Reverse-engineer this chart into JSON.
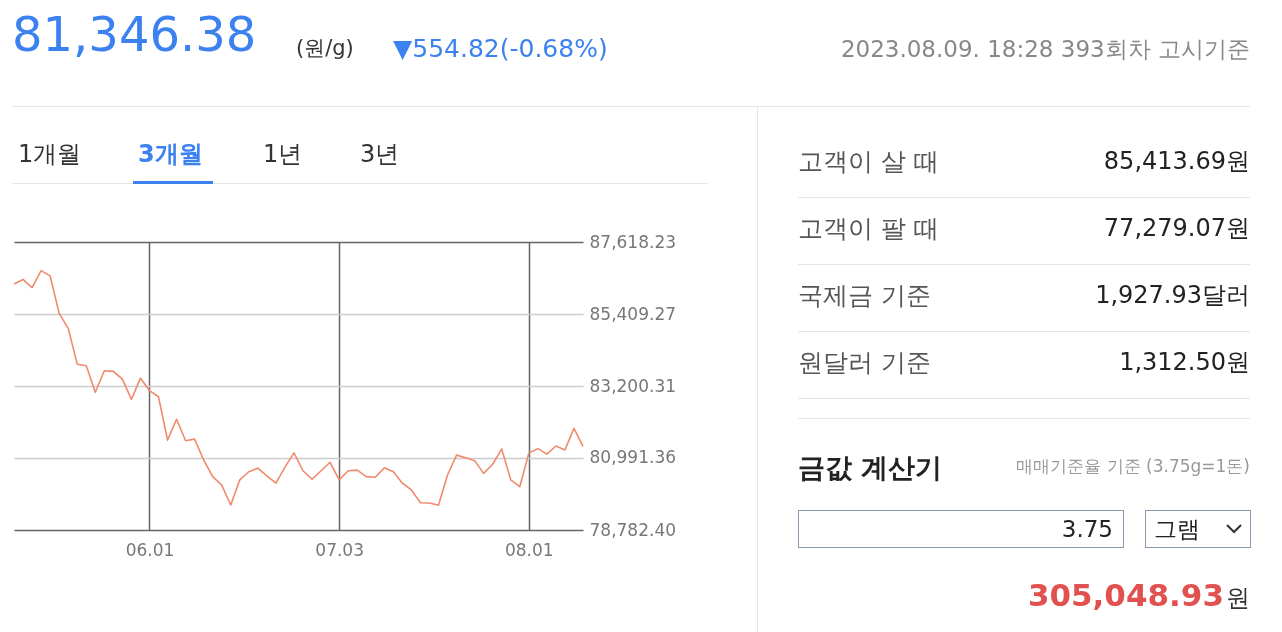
{
  "chart_data": [
    {
      "type": "line",
      "title": "81,346.38",
      "subtitle": "▼554.82(-0.68%)",
      "annotations": [
        "(원/g)",
        "2023.08.09. 18:28 393회차 고시기준",
        "1개월",
        "3개월",
        "1년",
        "3년"
      ],
      "categories": [
        null,
        null,
        null,
        null,
        null,
        null,
        null,
        null,
        null,
        null,
        null,
        null,
        null,
        null,
        null,
        "06.01",
        null,
        null,
        null,
        null,
        null,
        null,
        null,
        null,
        null,
        null,
        null,
        null,
        null,
        null,
        null,
        null,
        null,
        null,
        null,
        null,
        "07.03",
        null,
        null,
        null,
        null,
        null,
        null,
        null,
        null,
        null,
        null,
        null,
        null,
        null,
        null,
        null,
        null,
        null,
        null,
        null,
        null,
        "08.01",
        null,
        null,
        null,
        null,
        null,
        null
      ],
      "series": [
        {
          "color": "#f08a6c",
          "values": [
            86330,
            86470,
            86220,
            86740,
            86580,
            85430,
            84970,
            83870,
            83820,
            83010,
            83670,
            83650,
            83410,
            82790,
            83440,
            83060,
            82870,
            81540,
            82180,
            81520,
            81570,
            80930,
            80420,
            80160,
            79550,
            80320,
            80570,
            80680,
            80440,
            80220,
            80710,
            81150,
            80600,
            80340,
            80600,
            80860,
            80320,
            80600,
            80620,
            80420,
            80400,
            80690,
            80570,
            80220,
            80010,
            79620,
            79610,
            79540,
            80470,
            81080,
            81000,
            80910,
            80520,
            80800,
            81270,
            80320,
            80110,
            81140,
            81280,
            81110,
            81360,
            81240,
            81900,
            81350
          ]
        }
      ],
      "ylim": [
        78782.4,
        87618.23
      ],
      "yticks": [
        {
          "value": 78782.4,
          "label": "78,782.40"
        },
        {
          "value": 80991.36,
          "label": "80,991.36"
        },
        {
          "value": 83200.31,
          "label": "83,200.31"
        },
        {
          "value": 85409.27,
          "label": "85,409.27"
        },
        {
          "value": 87618.23,
          "label": "87,618.23"
        }
      ],
      "grid": true
    },
    {
      "type": "other",
      "title": "금값 계산기",
      "subtitle": "매매기준율 기준 (3.75g=1돈)",
      "annotations": [
        "고객이 살 때",
        "85,413.69원",
        "고객이 팔 때",
        "77,279.07원",
        "국제금 기준",
        "1,927.93달러",
        "원달러 기준",
        "1,312.50원",
        "3.75",
        "그램",
        "305,048.93",
        "원"
      ]
    }
  ]
}
